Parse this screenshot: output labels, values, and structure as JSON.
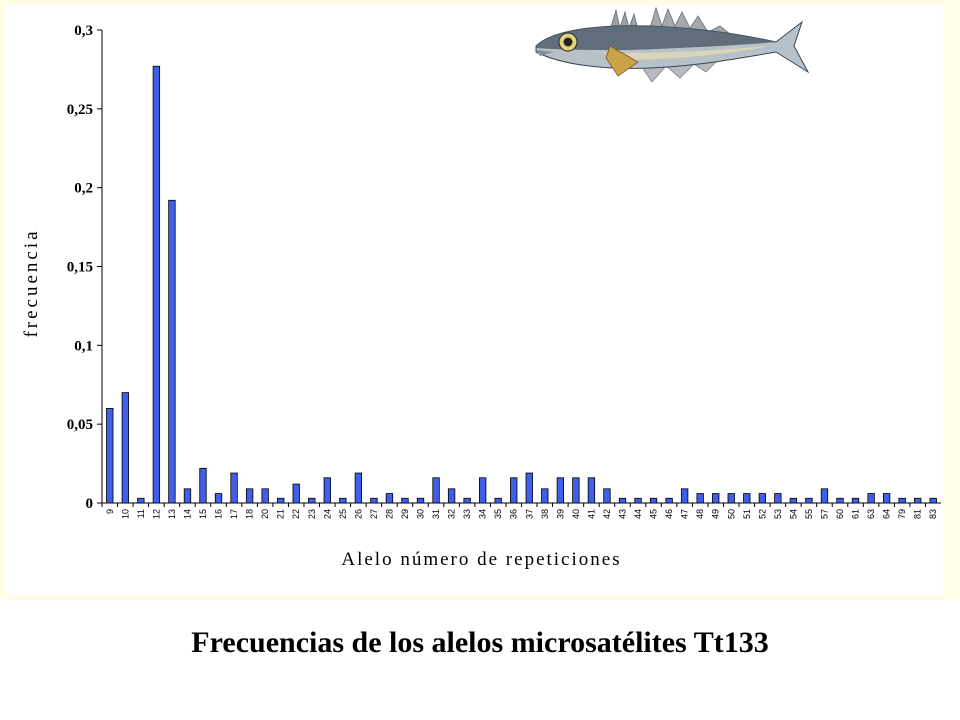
{
  "caption": "Frecuencias de los alelos microsatélites Tt133",
  "colors": {
    "bar": "#3f5fe8",
    "bar_stroke": "#000000",
    "background_panel": "#fffde8"
  },
  "illustration": "fish-icon",
  "chart_data": {
    "type": "bar",
    "xlabel": "Alelo número de repeticiones",
    "ylabel": "frecuencia",
    "ylim": [
      0,
      0.3
    ],
    "yticks": [
      "0",
      "0,05",
      "0,1",
      "0,15",
      "0,2",
      "0,25",
      "0,3"
    ],
    "ytick_values": [
      0,
      0.05,
      0.1,
      0.15,
      0.2,
      0.25,
      0.3
    ],
    "grid": false,
    "categories": [
      "9",
      "10",
      "11",
      "12",
      "13",
      "14",
      "15",
      "16",
      "17",
      "18",
      "20",
      "21",
      "22",
      "23",
      "24",
      "25",
      "26",
      "27",
      "28",
      "29",
      "30",
      "31",
      "32",
      "33",
      "34",
      "35",
      "36",
      "37",
      "38",
      "39",
      "40",
      "41",
      "42",
      "43",
      "44",
      "45",
      "46",
      "47",
      "48",
      "49",
      "50",
      "51",
      "52",
      "53",
      "54",
      "55",
      "57",
      "60",
      "61",
      "63",
      "64",
      "79",
      "81",
      "83"
    ],
    "values": [
      0.06,
      0.07,
      0.003,
      0.277,
      0.192,
      0.009,
      0.022,
      0.006,
      0.019,
      0.009,
      0.009,
      0.003,
      0.012,
      0.003,
      0.016,
      0.003,
      0.019,
      0.003,
      0.006,
      0.003,
      0.003,
      0.016,
      0.009,
      0.003,
      0.016,
      0.003,
      0.016,
      0.019,
      0.009,
      0.016,
      0.016,
      0.016,
      0.009,
      0.003,
      0.003,
      0.003,
      0.003,
      0.009,
      0.006,
      0.006,
      0.006,
      0.006,
      0.006,
      0.006,
      0.003,
      0.003,
      0.009,
      0.003,
      0.003,
      0.006,
      0.006,
      0.003,
      0.003,
      0.003
    ]
  }
}
